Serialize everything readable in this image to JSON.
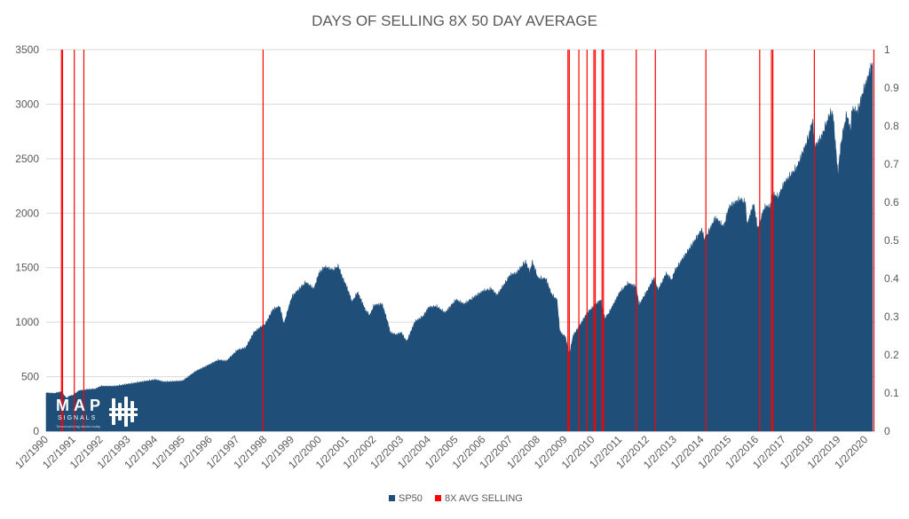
{
  "chart_data": {
    "type": "area",
    "title": "DAYS OF SELLING 8X 50 DAY AVERAGE",
    "xlabel": "",
    "ylabel": "",
    "ylim": [
      0,
      3500
    ],
    "y_ticks": [
      0,
      500,
      1000,
      1500,
      2000,
      2500,
      3000,
      3500
    ],
    "y2lim": [
      0,
      1
    ],
    "y2_ticks": [
      "0",
      "0.1",
      "0.2",
      "0.3",
      "0.4",
      "0.5",
      "0.6",
      "0.7",
      "0.8",
      "0.9",
      "1"
    ],
    "x_range": [
      1990.0,
      2020.35
    ],
    "x_tick_labels": [
      "1/2/1990",
      "1/2/1991",
      "1/2/1992",
      "1/2/1993",
      "1/2/1994",
      "1/2/1995",
      "1/2/1996",
      "1/2/1997",
      "1/2/1998",
      "1/2/1999",
      "1/2/2000",
      "1/2/2001",
      "1/2/2002",
      "1/2/2003",
      "1/2/2004",
      "1/2/2005",
      "1/2/2006",
      "1/2/2007",
      "1/2/2008",
      "1/2/2009",
      "1/2/2010",
      "1/2/2011",
      "1/2/2012",
      "1/2/2013",
      "1/2/2014",
      "1/2/2015",
      "1/2/2016",
      "1/2/2017",
      "1/2/2018",
      "1/2/2019",
      "1/2/2020"
    ],
    "grid": true,
    "legend_position": "bottom",
    "series": [
      {
        "name": "SP50",
        "color": "#1f4e79",
        "axis": "left",
        "points": [
          [
            1990.0,
            350
          ],
          [
            1990.3,
            345
          ],
          [
            1990.55,
            360
          ],
          [
            1990.75,
            300
          ],
          [
            1990.85,
            320
          ],
          [
            1991.0,
            330
          ],
          [
            1991.2,
            370
          ],
          [
            1991.5,
            380
          ],
          [
            1991.8,
            385
          ],
          [
            1992.0,
            410
          ],
          [
            1992.5,
            410
          ],
          [
            1993.0,
            430
          ],
          [
            1993.5,
            450
          ],
          [
            1994.0,
            470
          ],
          [
            1994.3,
            450
          ],
          [
            1994.8,
            455
          ],
          [
            1995.0,
            460
          ],
          [
            1995.5,
            550
          ],
          [
            1996.0,
            610
          ],
          [
            1996.3,
            650
          ],
          [
            1996.6,
            640
          ],
          [
            1997.0,
            740
          ],
          [
            1997.3,
            760
          ],
          [
            1997.6,
            900
          ],
          [
            1997.85,
            950
          ],
          [
            1998.0,
            970
          ],
          [
            1998.3,
            1110
          ],
          [
            1998.55,
            1140
          ],
          [
            1998.7,
            980
          ],
          [
            1998.9,
            1150
          ],
          [
            1999.0,
            1230
          ],
          [
            1999.5,
            1360
          ],
          [
            1999.8,
            1300
          ],
          [
            2000.0,
            1450
          ],
          [
            2000.2,
            1500
          ],
          [
            2000.5,
            1470
          ],
          [
            2000.7,
            1510
          ],
          [
            2000.85,
            1400
          ],
          [
            2001.0,
            1320
          ],
          [
            2001.2,
            1180
          ],
          [
            2001.4,
            1270
          ],
          [
            2001.7,
            1100
          ],
          [
            2001.85,
            1060
          ],
          [
            2002.0,
            1150
          ],
          [
            2002.3,
            1160
          ],
          [
            2002.5,
            1000
          ],
          [
            2002.6,
            900
          ],
          [
            2002.8,
            880
          ],
          [
            2003.0,
            900
          ],
          [
            2003.2,
            820
          ],
          [
            2003.5,
            1000
          ],
          [
            2003.8,
            1050
          ],
          [
            2004.0,
            1130
          ],
          [
            2004.3,
            1140
          ],
          [
            2004.6,
            1080
          ],
          [
            2005.0,
            1200
          ],
          [
            2005.3,
            1160
          ],
          [
            2005.7,
            1230
          ],
          [
            2006.0,
            1280
          ],
          [
            2006.3,
            1300
          ],
          [
            2006.5,
            1240
          ],
          [
            2007.0,
            1430
          ],
          [
            2007.2,
            1440
          ],
          [
            2007.55,
            1550
          ],
          [
            2007.7,
            1450
          ],
          [
            2007.8,
            1550
          ],
          [
            2008.0,
            1400
          ],
          [
            2008.3,
            1390
          ],
          [
            2008.5,
            1250
          ],
          [
            2008.7,
            1200
          ],
          [
            2008.8,
            920
          ],
          [
            2008.9,
            880
          ],
          [
            2009.0,
            870
          ],
          [
            2009.15,
            700
          ],
          [
            2009.3,
            880
          ],
          [
            2009.5,
            950
          ],
          [
            2009.8,
            1080
          ],
          [
            2010.0,
            1130
          ],
          [
            2010.3,
            1200
          ],
          [
            2010.45,
            1030
          ],
          [
            2010.6,
            1080
          ],
          [
            2011.0,
            1270
          ],
          [
            2011.3,
            1350
          ],
          [
            2011.6,
            1320
          ],
          [
            2011.7,
            1150
          ],
          [
            2011.9,
            1240
          ],
          [
            2012.0,
            1280
          ],
          [
            2012.25,
            1400
          ],
          [
            2012.4,
            1290
          ],
          [
            2012.7,
            1440
          ],
          [
            2012.9,
            1380
          ],
          [
            2013.0,
            1460
          ],
          [
            2013.5,
            1650
          ],
          [
            2014.0,
            1840
          ],
          [
            2014.1,
            1750
          ],
          [
            2014.5,
            1950
          ],
          [
            2014.8,
            1870
          ],
          [
            2015.0,
            2050
          ],
          [
            2015.4,
            2120
          ],
          [
            2015.6,
            2090
          ],
          [
            2015.65,
            1880
          ],
          [
            2015.9,
            2080
          ],
          [
            2016.05,
            1850
          ],
          [
            2016.3,
            2050
          ],
          [
            2016.5,
            2050
          ],
          [
            2016.6,
            2170
          ],
          [
            2016.8,
            2140
          ],
          [
            2017.0,
            2260
          ],
          [
            2017.5,
            2420
          ],
          [
            2017.9,
            2680
          ],
          [
            2018.05,
            2850
          ],
          [
            2018.15,
            2600
          ],
          [
            2018.4,
            2700
          ],
          [
            2018.7,
            2910
          ],
          [
            2018.8,
            2900
          ],
          [
            2018.9,
            2600
          ],
          [
            2018.98,
            2350
          ],
          [
            2019.1,
            2640
          ],
          [
            2019.3,
            2900
          ],
          [
            2019.45,
            2750
          ],
          [
            2019.5,
            2950
          ],
          [
            2019.7,
            2920
          ],
          [
            2019.9,
            3100
          ],
          [
            2020.1,
            3250
          ],
          [
            2020.2,
            3340
          ],
          [
            2020.25,
            3380
          ]
        ]
      },
      {
        "name": "8X AVG SELLING",
        "color": "#ff0000",
        "axis": "right",
        "events": [
          1990.56,
          1990.6,
          1991.03,
          1991.38,
          1997.94,
          2009.1,
          2009.15,
          2009.5,
          2009.8,
          2010.05,
          2010.1,
          2010.35,
          2010.4,
          2011.6,
          2012.3,
          2014.15,
          2016.12,
          2016.55,
          2016.6,
          2018.12,
          2020.3
        ]
      }
    ]
  },
  "logo": {
    "name": "MAP",
    "sub": "SIGNALS",
    "tagline": "Tomorrow's big stocks today"
  }
}
